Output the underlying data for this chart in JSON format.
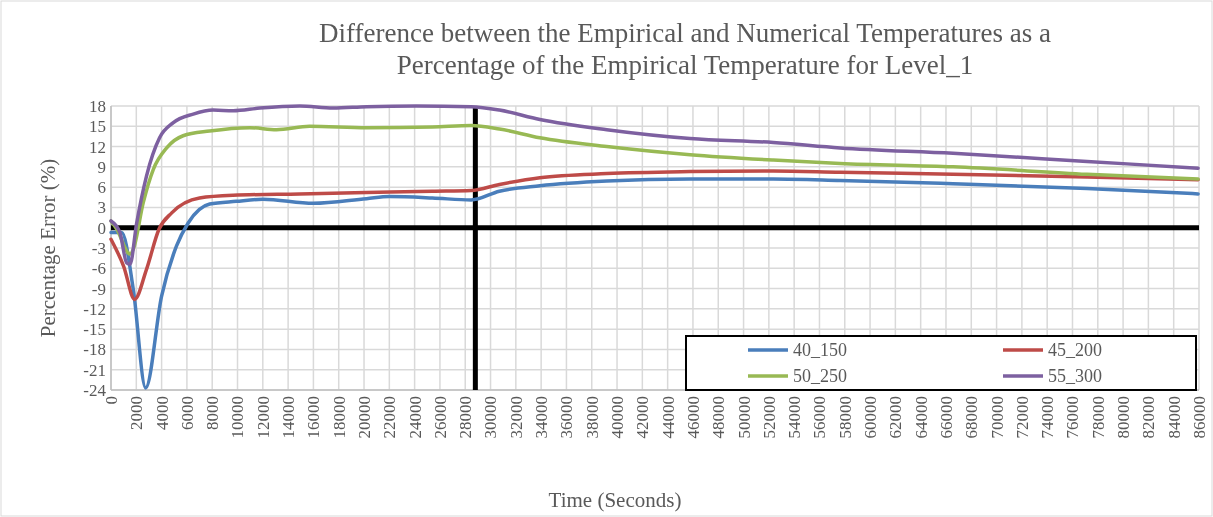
{
  "chart_data": {
    "type": "line",
    "title": "Difference between the Empirical and Numerical Temperatures as a Percentage of the Empirical Temperature for Level_1",
    "xlabel": "Time (Seconds)",
    "ylabel": "Percentage Error (%)",
    "xlim": [
      0,
      86000
    ],
    "xticks": [
      0,
      2000,
      4000,
      6000,
      8000,
      10000,
      12000,
      14000,
      16000,
      18000,
      20000,
      22000,
      24000,
      26000,
      28000,
      30000,
      32000,
      34000,
      36000,
      38000,
      40000,
      42000,
      44000,
      46000,
      48000,
      50000,
      52000,
      54000,
      56000,
      58000,
      60000,
      62000,
      64000,
      66000,
      68000,
      70000,
      72000,
      74000,
      76000,
      78000,
      80000,
      82000,
      84000,
      86000
    ],
    "ylim": [
      -24,
      18
    ],
    "yticks": [
      -24,
      -21,
      -18,
      -15,
      -12,
      -9,
      -6,
      -3,
      0,
      3,
      6,
      9,
      12,
      15,
      18
    ],
    "grid": true,
    "legend": "bottom right",
    "line_style": "solid",
    "marker": "none",
    "ref_lines": [
      {
        "axis": "y",
        "value": 0,
        "color": "#000000"
      },
      {
        "axis": "x",
        "value": 28800,
        "color": "#000000"
      }
    ],
    "series": [
      {
        "name": "40_150",
        "color": "#4a7ebb",
        "x": [
          0,
          850,
          1760,
          2740,
          4000,
          5180,
          6100,
          7800,
          9900,
          12000,
          16000,
          20200,
          22000,
          25400,
          28470,
          30700,
          33900,
          39190,
          45770,
          52350,
          57630,
          66560,
          77150,
          85930
        ],
        "values": [
          -0.7,
          -0.7,
          -9.1,
          -23.7,
          -10.1,
          -2.7,
          0.7,
          3.5,
          3.9,
          4.2,
          3.6,
          4.3,
          4.6,
          4.4,
          4.1,
          5.4,
          6.2,
          6.9,
          7.2,
          7.2,
          7.0,
          6.5,
          5.8,
          5.0
        ]
      },
      {
        "name": "45_200",
        "color": "#be4b48",
        "x": [
          0,
          1000,
          1870,
          2800,
          3800,
          4800,
          7000,
          9650,
          14900,
          20200,
          25400,
          28470,
          30700,
          33900,
          39190,
          45770,
          52350,
          57630,
          66560,
          77150,
          85930
        ],
        "values": [
          -1.7,
          -5.7,
          -10.6,
          -6.2,
          -0.2,
          2.2,
          4.4,
          4.8,
          5.0,
          5.2,
          5.4,
          5.5,
          6.4,
          7.4,
          8.0,
          8.3,
          8.4,
          8.2,
          7.9,
          7.5,
          7.1
        ]
      },
      {
        "name": "50_250",
        "color": "#98b954",
        "x": [
          0,
          450,
          1500,
          1760,
          2550,
          3340,
          4400,
          5700,
          7800,
          10970,
          13080,
          15700,
          20200,
          25400,
          28470,
          30700,
          33900,
          39190,
          45770,
          52350,
          57630,
          66560,
          77150,
          85930
        ],
        "values": [
          1.0,
          -0.2,
          -3.9,
          -3.2,
          3.7,
          8.6,
          11.8,
          13.6,
          14.3,
          14.8,
          14.5,
          15.0,
          14.8,
          14.9,
          15.1,
          14.6,
          13.3,
          12.0,
          10.8,
          10.0,
          9.5,
          9.0,
          7.9,
          7.2
        ]
      },
      {
        "name": "55_300",
        "color": "#7d60a0",
        "x": [
          0,
          700,
          1240,
          1500,
          2030,
          2800,
          3840,
          4900,
          6500,
          8080,
          9650,
          11770,
          14920,
          17550,
          20200,
          24130,
          28470,
          30700,
          33900,
          39190,
          45770,
          52350,
          57630,
          66560,
          77150,
          85930
        ],
        "values": [
          1.0,
          -0.7,
          -5.2,
          -5.4,
          0.7,
          7.6,
          13.3,
          15.5,
          16.8,
          17.4,
          17.3,
          17.7,
          18.0,
          17.7,
          17.9,
          18.0,
          17.9,
          17.4,
          16.0,
          14.5,
          13.2,
          12.6,
          11.8,
          11.0,
          9.8,
          8.8
        ]
      }
    ]
  }
}
